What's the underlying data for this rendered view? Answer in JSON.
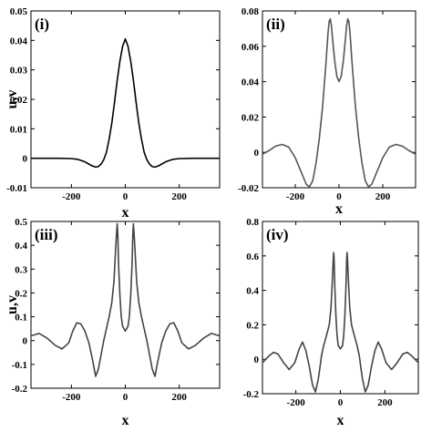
{
  "chart_data": [
    {
      "type": "line",
      "panel_label": "(i)",
      "xlabel": "x",
      "ylabel": "u,v",
      "xlim": [
        -350,
        350
      ],
      "ylim": [
        -0.01,
        0.05
      ],
      "xticks": [
        -200,
        0,
        200
      ],
      "xtick_labels": [
        "-200",
        "0",
        "200"
      ],
      "yticks": [
        -0.01,
        0,
        0.01,
        0.02,
        0.03,
        0.04,
        0.05
      ],
      "ytick_labels": [
        "-0.01",
        "0",
        "0.01",
        "0.02",
        "0.03",
        "0.04",
        "0.05"
      ],
      "series": [
        {
          "color": "#000000",
          "x": [
            -350,
            -300,
            -250,
            -200,
            -175,
            -150,
            -125,
            -110,
            -100,
            -90,
            -80,
            -70,
            -60,
            -50,
            -40,
            -30,
            -20,
            -10,
            0,
            10,
            20,
            30,
            40,
            50,
            60,
            70,
            80,
            90,
            100,
            110,
            125,
            150,
            175,
            200,
            250,
            300,
            350
          ],
          "y": [
            0,
            0,
            0,
            -0.0001,
            -0.0004,
            -0.0012,
            -0.0025,
            -0.003,
            -0.0028,
            -0.002,
            -0.0005,
            0.002,
            0.0065,
            0.012,
            0.019,
            0.0265,
            0.033,
            0.038,
            0.0405,
            0.038,
            0.033,
            0.0265,
            0.019,
            0.012,
            0.0065,
            0.002,
            -0.0005,
            -0.002,
            -0.0028,
            -0.003,
            -0.0025,
            -0.0012,
            -0.0004,
            -0.0001,
            0,
            0,
            0
          ]
        }
      ]
    },
    {
      "type": "line",
      "panel_label": "(ii)",
      "xlabel": "x",
      "ylabel": "",
      "xlim": [
        -350,
        350
      ],
      "ylim": [
        -0.02,
        0.08
      ],
      "xticks": [
        -200,
        0,
        200
      ],
      "xtick_labels": [
        "-200",
        "0",
        "200"
      ],
      "yticks": [
        -0.02,
        0,
        0.02,
        0.04,
        0.06,
        0.08
      ],
      "ytick_labels": [
        "-0.02",
        "0",
        "0.02",
        "0.04",
        "0.06",
        "0.08"
      ],
      "series": [
        {
          "color": "#555555",
          "x": [
            -350,
            -320,
            -290,
            -260,
            -230,
            -200,
            -170,
            -150,
            -135,
            -120,
            -105,
            -90,
            -75,
            -60,
            -50,
            -45,
            -40,
            -35,
            -30,
            -20,
            -10,
            0,
            10,
            20,
            30,
            35,
            40,
            45,
            50,
            60,
            75,
            90,
            105,
            120,
            135,
            150,
            170,
            200,
            230,
            260,
            290,
            320,
            350
          ],
          "y": [
            -0.001,
            0.001,
            0.0035,
            0.0045,
            0.003,
            -0.003,
            -0.012,
            -0.018,
            -0.0195,
            -0.016,
            -0.006,
            0.008,
            0.026,
            0.05,
            0.068,
            0.074,
            0.0755,
            0.072,
            0.065,
            0.052,
            0.043,
            0.04,
            0.043,
            0.052,
            0.065,
            0.072,
            0.0755,
            0.074,
            0.068,
            0.05,
            0.026,
            0.008,
            -0.006,
            -0.016,
            -0.0195,
            -0.018,
            -0.012,
            -0.003,
            0.003,
            0.0045,
            0.0035,
            0.001,
            -0.001
          ]
        }
      ]
    },
    {
      "type": "line",
      "panel_label": "(iii)",
      "xlabel": "x",
      "ylabel": "u,v",
      "xlim": [
        -350,
        350
      ],
      "ylim": [
        -0.2,
        0.5
      ],
      "xticks": [
        -200,
        0,
        200
      ],
      "xtick_labels": [
        "-200",
        "0",
        "200"
      ],
      "yticks": [
        -0.2,
        -0.1,
        0,
        0.1,
        0.2,
        0.3,
        0.4,
        0.5
      ],
      "ytick_labels": [
        "-0.2",
        "-0.1",
        "0",
        "0.1",
        "0.2",
        "0.3",
        "0.4",
        "0.5"
      ],
      "series": [
        {
          "color": "#444444",
          "x": [
            -350,
            -320,
            -290,
            -260,
            -235,
            -210,
            -195,
            -180,
            -165,
            -150,
            -135,
            -120,
            -110,
            -100,
            -90,
            -80,
            -70,
            -60,
            -50,
            -42,
            -36,
            -32,
            -30,
            -28,
            -25,
            -20,
            -15,
            -10,
            0,
            10,
            15,
            20,
            25,
            28,
            30,
            32,
            36,
            42,
            50,
            60,
            70,
            80,
            90,
            100,
            110,
            120,
            135,
            150,
            165,
            180,
            195,
            210,
            235,
            260,
            290,
            320,
            350
          ],
          "y": [
            0.02,
            0.03,
            0.01,
            -0.02,
            -0.035,
            -0.01,
            0.04,
            0.075,
            0.07,
            0.04,
            -0.01,
            -0.09,
            -0.15,
            -0.12,
            -0.06,
            0,
            0.05,
            0.1,
            0.16,
            0.25,
            0.38,
            0.46,
            0.49,
            0.45,
            0.32,
            0.19,
            0.1,
            0.06,
            0.04,
            0.06,
            0.1,
            0.19,
            0.32,
            0.45,
            0.49,
            0.46,
            0.38,
            0.25,
            0.16,
            0.1,
            0.05,
            0,
            -0.06,
            -0.12,
            -0.15,
            -0.09,
            -0.01,
            0.04,
            0.07,
            0.075,
            0.04,
            -0.01,
            -0.035,
            -0.02,
            0.01,
            0.03,
            0.02
          ]
        }
      ]
    },
    {
      "type": "line",
      "panel_label": "(iv)",
      "xlabel": "x",
      "ylabel": "",
      "xlim": [
        -350,
        350
      ],
      "ylim": [
        -0.2,
        0.8
      ],
      "xticks": [
        -200,
        0,
        200
      ],
      "xtick_labels": [
        "-200",
        "0",
        "200"
      ],
      "yticks": [
        -0.2,
        0,
        0.2,
        0.4,
        0.6,
        0.8
      ],
      "ytick_labels": [
        "-0.2",
        "0",
        "0.2",
        "0.4",
        "0.6",
        "0.8"
      ],
      "series": [
        {
          "color": "#444444",
          "x": [
            -350,
            -320,
            -300,
            -280,
            -255,
            -230,
            -205,
            -185,
            -170,
            -155,
            -140,
            -125,
            -112,
            -100,
            -92,
            -85,
            -75,
            -62,
            -50,
            -42,
            -36,
            -32,
            -30,
            -28,
            -25,
            -20,
            -15,
            -10,
            0,
            10,
            15,
            20,
            25,
            28,
            30,
            32,
            36,
            42,
            50,
            62,
            75,
            85,
            92,
            100,
            112,
            125,
            140,
            155,
            170,
            185,
            205,
            230,
            255,
            280,
            300,
            320,
            350
          ],
          "y": [
            -0.02,
            0.02,
            0.04,
            0.03,
            -0.02,
            -0.06,
            -0.02,
            0.06,
            0.1,
            0.05,
            -0.04,
            -0.15,
            -0.19,
            -0.12,
            -0.05,
            0.02,
            0.08,
            0.14,
            0.2,
            0.3,
            0.46,
            0.58,
            0.62,
            0.57,
            0.42,
            0.25,
            0.14,
            0.08,
            0.06,
            0.08,
            0.14,
            0.25,
            0.42,
            0.57,
            0.62,
            0.58,
            0.46,
            0.3,
            0.2,
            0.14,
            0.08,
            0.02,
            -0.05,
            -0.12,
            -0.19,
            -0.15,
            -0.04,
            0.05,
            0.1,
            0.06,
            -0.02,
            -0.06,
            -0.02,
            0.03,
            0.04,
            0.02,
            -0.02
          ]
        }
      ]
    }
  ]
}
